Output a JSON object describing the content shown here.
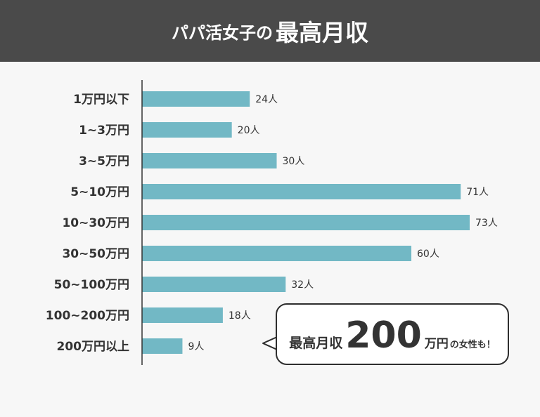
{
  "header": {
    "title_prefix": "パパ活女子の",
    "title_main": "最高月収"
  },
  "chart_data": {
    "type": "bar",
    "orientation": "horizontal",
    "title": "パパ活女子の最高月収",
    "categories": [
      "1万円以下",
      "1~3万円",
      "3~5万円",
      "5~10万円",
      "10~30万円",
      "30~50万円",
      "50~100万円",
      "100~200万円",
      "200万円以上"
    ],
    "values": [
      24,
      20,
      30,
      71,
      73,
      60,
      32,
      18,
      9
    ],
    "value_labels": [
      "24人",
      "20人",
      "30人",
      "71人",
      "73人",
      "60人",
      "32人",
      "18人",
      "9人"
    ],
    "xlim": [
      0,
      73
    ],
    "bar_color": "#72b8c5",
    "axis_color": "#333333",
    "grid": false
  },
  "callout": {
    "prefix": "最高月収",
    "number": "200",
    "suffix": "万円",
    "tail": "の女性も！"
  }
}
